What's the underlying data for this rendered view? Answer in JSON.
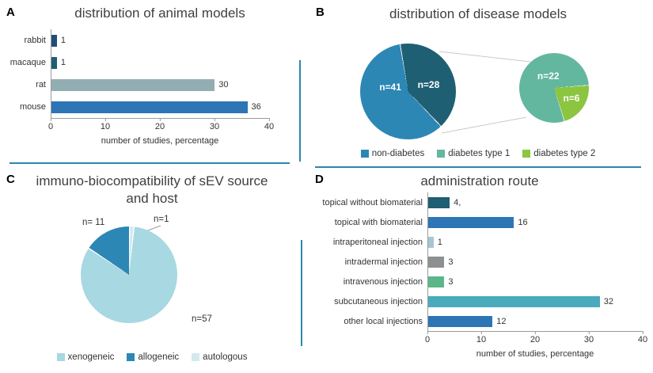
{
  "figure": {
    "background": "#ffffff",
    "divider_color": "#2e86ab"
  },
  "chart_data": [
    {
      "panel": "A",
      "id": "animal-models",
      "type": "bar",
      "orientation": "horizontal",
      "title": "distribution of animal models",
      "categories": [
        "rabbit",
        "macaque",
        "rat",
        "mouse"
      ],
      "values": [
        1,
        1,
        30,
        36
      ],
      "value_labels": [
        "1",
        "1",
        "30",
        "36"
      ],
      "bar_colors": [
        "#1f4e79",
        "#1f5f73",
        "#93aeb3",
        "#2e75b6"
      ],
      "xlabel": "number of studies, percentage",
      "xlim": [
        0,
        40
      ],
      "xticks": [
        0,
        10,
        20,
        30,
        40
      ],
      "grid": false
    },
    {
      "panel": "B",
      "id": "disease-models",
      "type": "pie",
      "title": "distribution of disease models",
      "pies": [
        {
          "name": "all-studies",
          "start_angle": 350,
          "gap_deg": 1,
          "slices": [
            {
              "series": "diabetes (type 1 + type 2)",
              "label": "n=28",
              "value": 28,
              "color": "#1f5f73"
            },
            {
              "series": "non-diabetes",
              "label": "n=41",
              "value": 41,
              "color": "#2d87b5"
            }
          ]
        },
        {
          "name": "diabetes-breakdown",
          "start_angle": 85,
          "gap_deg": 1,
          "slices": [
            {
              "series": "diabetes type 2",
              "label": "n=6",
              "value": 6,
              "color": "#8cc540"
            },
            {
              "series": "diabetes type 1",
              "label": "n=22",
              "value": 22,
              "color": "#63b79e"
            }
          ]
        }
      ],
      "legend": [
        {
          "label": "non-diabetes",
          "color": "#2d87b5"
        },
        {
          "label": "diabetes type 1",
          "color": "#63b79e"
        },
        {
          "label": "diabetes type 2",
          "color": "#8cc540"
        }
      ],
      "legend_position": "bottom"
    },
    {
      "panel": "C",
      "id": "immuno-biocompatibility",
      "type": "pie",
      "title": "immuno-biocompatibility of sEV source and host",
      "pies": [
        {
          "name": "sev-source-vs-host",
          "start_angle": 0,
          "gap_deg": 1.5,
          "slices": [
            {
              "series": "autologous",
              "label": "n=1",
              "value": 1,
              "color": "#d3e9ee"
            },
            {
              "series": "xenogeneic",
              "label": "n=57",
              "value": 57,
              "color": "#a8d8e2"
            },
            {
              "series": "allogeneic",
              "label": "n= 11",
              "value": 11,
              "color": "#2d87b5"
            }
          ]
        }
      ],
      "legend": [
        {
          "label": "xenogeneic",
          "color": "#a8d8e2"
        },
        {
          "label": "allogeneic",
          "color": "#2d87b5"
        },
        {
          "label": "autologous",
          "color": "#d3e9ee"
        }
      ],
      "legend_position": "bottom"
    },
    {
      "panel": "D",
      "id": "administration-route",
      "type": "bar",
      "orientation": "horizontal",
      "title": "administration route",
      "categories": [
        "topical without biomaterial",
        "topical with biomaterial",
        "intraperitoneal injection",
        "intradermal injection",
        "intravenous injection",
        "subcutaneous injection",
        "other local injections"
      ],
      "values": [
        4,
        16,
        1,
        3,
        3,
        32,
        12
      ],
      "value_labels": [
        "4,",
        "16",
        "1",
        "3",
        "3",
        "32",
        "12"
      ],
      "bar_colors": [
        "#1f5f73",
        "#2e75b6",
        "#a7c6d4",
        "#8c9091",
        "#5bb78a",
        "#4aabbd",
        "#2e75b6"
      ],
      "xlabel": "number of studies, percentage",
      "xlim": [
        0,
        40
      ],
      "xticks": [
        0,
        10,
        20,
        30,
        40
      ],
      "grid": false
    }
  ]
}
